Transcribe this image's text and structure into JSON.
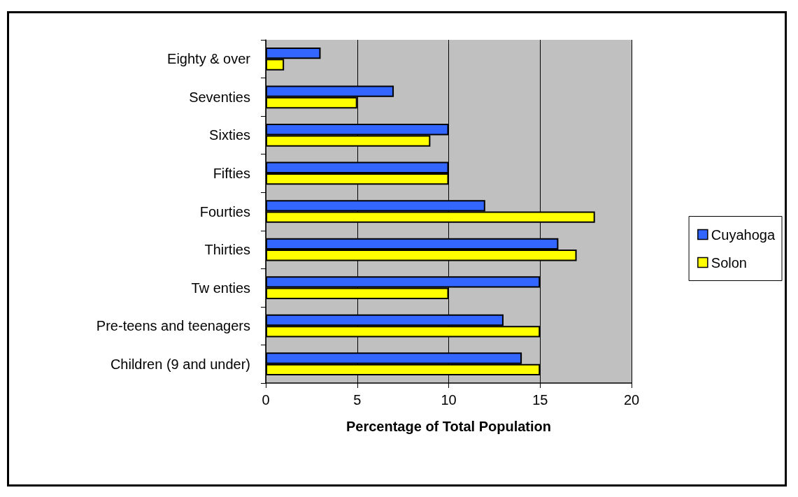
{
  "chart_data": {
    "type": "bar",
    "orientation": "horizontal",
    "xlabel": "Percentage of Total Population",
    "categories": [
      "Eighty & over",
      "Seventies",
      "Sixties",
      "Fifties",
      "Fourties",
      "Thirties",
      "Tw enties",
      "Pre-teens and teenagers",
      "Children (9 and under)"
    ],
    "series": [
      {
        "name": "Cuyahoga",
        "color": "#3366ff",
        "values": [
          3,
          7,
          10,
          10,
          12,
          16,
          15,
          13,
          14
        ]
      },
      {
        "name": "Solon",
        "color": "#ffff00",
        "values": [
          1,
          5,
          9,
          10,
          18,
          17,
          10,
          15,
          15
        ]
      }
    ],
    "xlim": [
      0,
      20
    ],
    "xticks": [
      0,
      5,
      10,
      15,
      20
    ],
    "grid": "x",
    "legend": "right"
  }
}
